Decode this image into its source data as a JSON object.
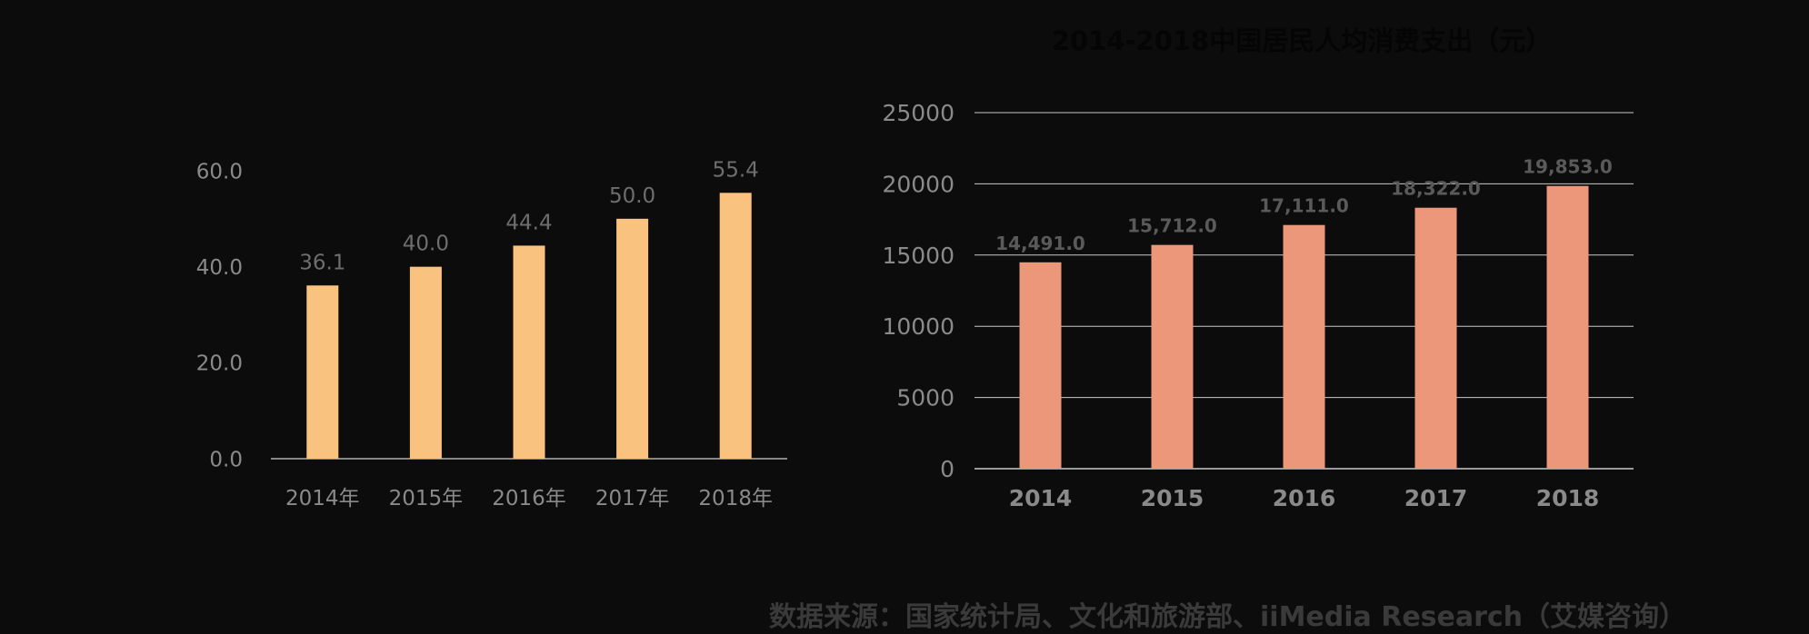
{
  "chart_data": [
    {
      "type": "bar",
      "title": "",
      "categories": [
        "2014年",
        "2015年",
        "2016年",
        "2017年",
        "2018年"
      ],
      "values": [
        36.1,
        40.0,
        44.4,
        50.0,
        55.4
      ],
      "data_labels": [
        "36.1",
        "40.0",
        "44.4",
        "50.0",
        "55.4"
      ],
      "y_ticks": [
        "0.0",
        "20.0",
        "40.0",
        "60.0"
      ],
      "y_tick_values": [
        0,
        20,
        40,
        60
      ],
      "ylim": [
        0,
        60
      ],
      "xlabel": "",
      "ylabel": "",
      "grid": false,
      "bar_color": "#f9c27f",
      "label_color": "#6e6e6e"
    },
    {
      "type": "bar",
      "title": "2014-2018中国居民人均消费支出（元）",
      "categories": [
        "2014",
        "2015",
        "2016",
        "2017",
        "2018"
      ],
      "values": [
        14491.0,
        15712.0,
        17111.0,
        18322.0,
        19853.0
      ],
      "data_labels": [
        "14,491.0",
        "15,712.0",
        "17,111.0",
        "18,322.0",
        "19,853.0"
      ],
      "y_ticks": [
        "0",
        "5000",
        "10000",
        "15000",
        "20000",
        "25000"
      ],
      "y_tick_values": [
        0,
        5000,
        10000,
        15000,
        20000,
        25000
      ],
      "ylim": [
        0,
        25000
      ],
      "xlabel": "",
      "ylabel": "",
      "grid": true,
      "bar_color": "#ec967a",
      "label_color": "#5a5a5a"
    }
  ],
  "footer": {
    "source": "数据来源：国家统计局、文化和旅游部、iiMedia Research（艾媒咨询）"
  }
}
